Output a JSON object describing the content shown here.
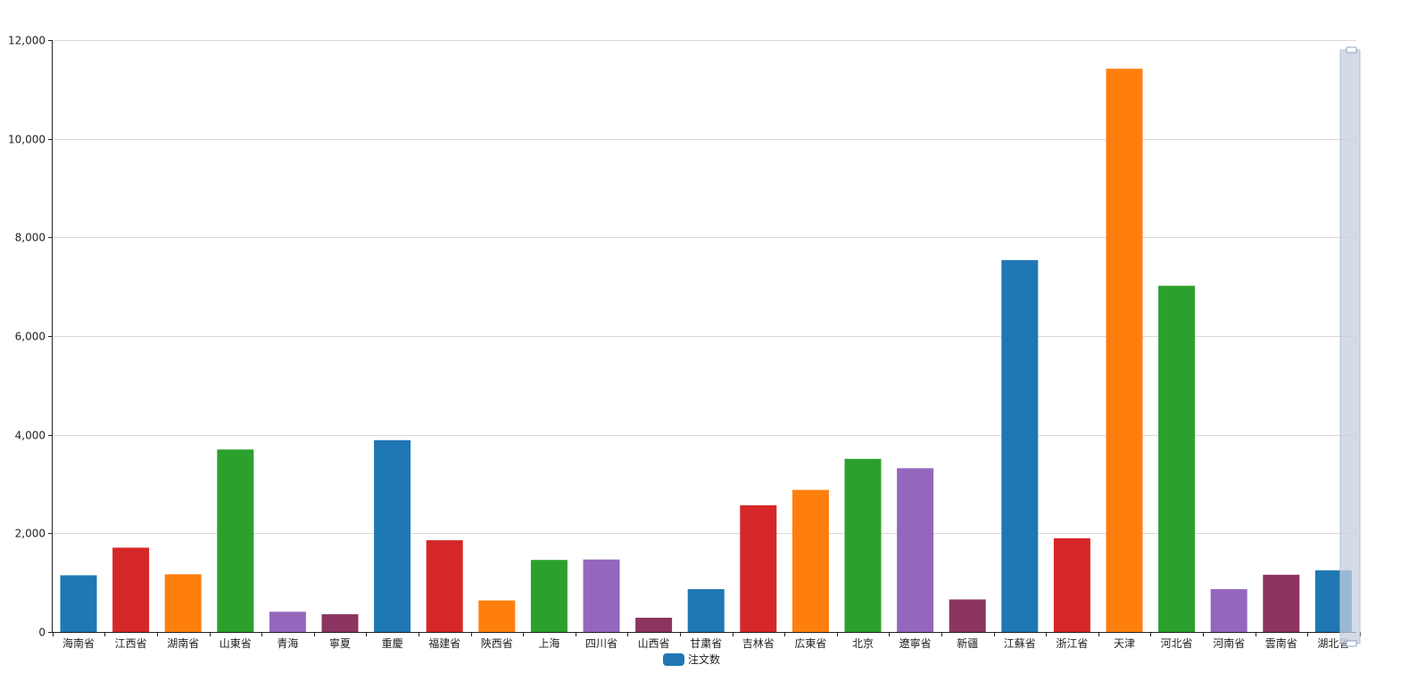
{
  "chart_data": {
    "type": "bar",
    "title": "",
    "xlabel": "",
    "ylabel": "",
    "ylim": [
      0,
      12000
    ],
    "yticks": [
      0,
      2000,
      4000,
      6000,
      8000,
      10000,
      12000
    ],
    "ytick_labels": [
      "0",
      "2,000",
      "4,000",
      "6,000",
      "8,000",
      "10,000",
      "12,000"
    ],
    "grid": "horizontal",
    "legend_position": "bottom-center",
    "categories": [
      "海南省",
      "江西省",
      "湖南省",
      "山東省",
      "青海",
      "寧夏",
      "重慶",
      "福建省",
      "陜西省",
      "上海",
      "四川省",
      "山西省",
      "甘粛省",
      "吉林省",
      "広東省",
      "北京",
      "遼寧省",
      "新疆",
      "江蘇省",
      "浙江省",
      "天津",
      "河北省",
      "河南省",
      "雲南省",
      "湖北省"
    ],
    "series": [
      {
        "name": "注文数",
        "values": [
          1150,
          1710,
          1170,
          3700,
          410,
          360,
          3890,
          1860,
          640,
          1460,
          1470,
          290,
          870,
          2570,
          2880,
          3510,
          3320,
          660,
          7540,
          1900,
          11420,
          7020,
          870,
          1160,
          1250
        ]
      }
    ],
    "bar_colors": [
      "#1f77b4",
      "#d62728",
      "#ff7f0e",
      "#2ca02c",
      "#9467bd",
      "#8c3560",
      "#1f77b4",
      "#d62728",
      "#ff7f0e",
      "#2ca02c",
      "#9467bd",
      "#8c3560",
      "#1f77b4",
      "#d62728",
      "#ff7f0e",
      "#2ca02c",
      "#9467bd",
      "#8c3560",
      "#1f77b4",
      "#d62728",
      "#ff7f0e",
      "#2ca02c",
      "#9467bd",
      "#8c3560",
      "#1f77b4"
    ],
    "legend_color": "#1f77b4",
    "scrollbar_color": "#c5cedd"
  }
}
